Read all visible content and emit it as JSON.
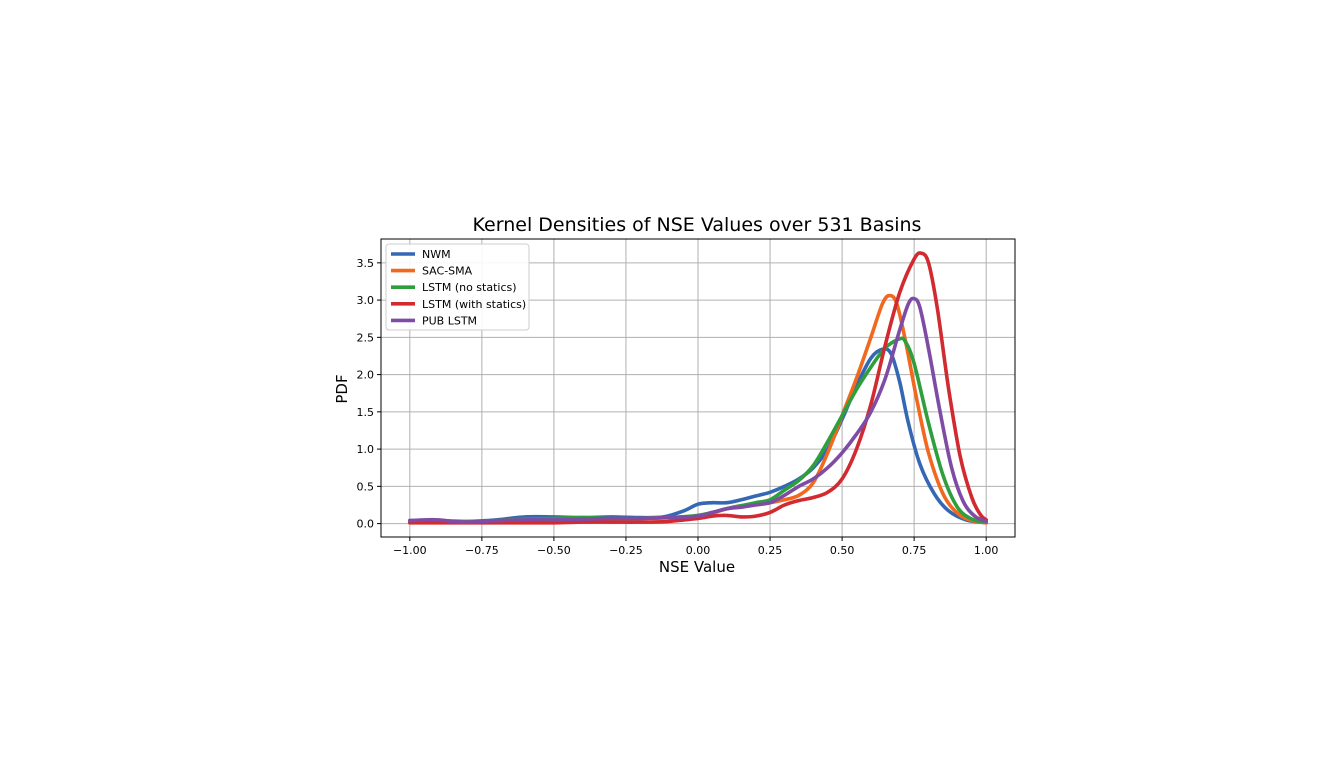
{
  "chart_data": {
    "type": "line",
    "title": "Kernel Densities of NSE Values over 531 Basins",
    "xlabel": "NSE Value",
    "ylabel": "PDF",
    "xlim": [
      -1.1,
      1.1
    ],
    "ylim": [
      -0.18,
      3.82
    ],
    "xticks": [
      -1.0,
      -0.75,
      -0.5,
      -0.25,
      0.0,
      0.25,
      0.5,
      0.75,
      1.0
    ],
    "xtick_labels": [
      "−1.00",
      "−0.75",
      "−0.50",
      "−0.25",
      "0.00",
      "0.25",
      "0.50",
      "0.75",
      "1.00"
    ],
    "yticks": [
      0.0,
      0.5,
      1.0,
      1.5,
      2.0,
      2.5,
      3.0,
      3.5
    ],
    "ytick_labels": [
      "0.0",
      "0.5",
      "1.0",
      "1.5",
      "2.0",
      "2.5",
      "3.0",
      "3.5"
    ],
    "grid": true,
    "legend_position": "top-left",
    "series": [
      {
        "name": "NWM",
        "color": "#3467b4",
        "points": [
          [
            -1.0,
            0.04
          ],
          [
            -0.9,
            0.04
          ],
          [
            -0.8,
            0.03
          ],
          [
            -0.7,
            0.05
          ],
          [
            -0.6,
            0.09
          ],
          [
            -0.5,
            0.09
          ],
          [
            -0.4,
            0.08
          ],
          [
            -0.3,
            0.09
          ],
          [
            -0.2,
            0.08
          ],
          [
            -0.12,
            0.09
          ],
          [
            -0.05,
            0.17
          ],
          [
            0.0,
            0.26
          ],
          [
            0.05,
            0.28
          ],
          [
            0.1,
            0.28
          ],
          [
            0.15,
            0.32
          ],
          [
            0.2,
            0.37
          ],
          [
            0.25,
            0.42
          ],
          [
            0.3,
            0.5
          ],
          [
            0.35,
            0.6
          ],
          [
            0.4,
            0.75
          ],
          [
            0.45,
            1.0
          ],
          [
            0.5,
            1.4
          ],
          [
            0.55,
            1.85
          ],
          [
            0.6,
            2.22
          ],
          [
            0.64,
            2.34
          ],
          [
            0.67,
            2.28
          ],
          [
            0.7,
            1.9
          ],
          [
            0.73,
            1.35
          ],
          [
            0.77,
            0.8
          ],
          [
            0.82,
            0.4
          ],
          [
            0.87,
            0.17
          ],
          [
            0.93,
            0.05
          ],
          [
            1.0,
            0.01
          ]
        ]
      },
      {
        "name": "SAC-SMA",
        "color": "#f0691f",
        "points": [
          [
            -1.0,
            0.02
          ],
          [
            -0.9,
            0.02
          ],
          [
            -0.8,
            0.02
          ],
          [
            -0.7,
            0.03
          ],
          [
            -0.6,
            0.05
          ],
          [
            -0.5,
            0.06
          ],
          [
            -0.4,
            0.06
          ],
          [
            -0.3,
            0.06
          ],
          [
            -0.2,
            0.07
          ],
          [
            -0.1,
            0.08
          ],
          [
            0.0,
            0.1
          ],
          [
            0.05,
            0.14
          ],
          [
            0.1,
            0.2
          ],
          [
            0.15,
            0.24
          ],
          [
            0.2,
            0.26
          ],
          [
            0.25,
            0.28
          ],
          [
            0.3,
            0.32
          ],
          [
            0.35,
            0.38
          ],
          [
            0.4,
            0.55
          ],
          [
            0.45,
            0.95
          ],
          [
            0.5,
            1.45
          ],
          [
            0.55,
            1.95
          ],
          [
            0.6,
            2.5
          ],
          [
            0.64,
            2.95
          ],
          [
            0.665,
            3.06
          ],
          [
            0.69,
            2.95
          ],
          [
            0.72,
            2.45
          ],
          [
            0.76,
            1.65
          ],
          [
            0.8,
            0.95
          ],
          [
            0.85,
            0.4
          ],
          [
            0.9,
            0.14
          ],
          [
            0.95,
            0.04
          ],
          [
            1.0,
            0.01
          ]
        ]
      },
      {
        "name": "LSTM (no statics)",
        "color": "#2f9e3d",
        "points": [
          [
            -1.0,
            0.02
          ],
          [
            -0.9,
            0.02
          ],
          [
            -0.8,
            0.02
          ],
          [
            -0.7,
            0.04
          ],
          [
            -0.6,
            0.06
          ],
          [
            -0.5,
            0.07
          ],
          [
            -0.4,
            0.08
          ],
          [
            -0.3,
            0.07
          ],
          [
            -0.2,
            0.07
          ],
          [
            -0.1,
            0.08
          ],
          [
            0.0,
            0.11
          ],
          [
            0.05,
            0.15
          ],
          [
            0.1,
            0.2
          ],
          [
            0.15,
            0.24
          ],
          [
            0.2,
            0.28
          ],
          [
            0.25,
            0.32
          ],
          [
            0.3,
            0.45
          ],
          [
            0.35,
            0.58
          ],
          [
            0.4,
            0.78
          ],
          [
            0.45,
            1.1
          ],
          [
            0.5,
            1.45
          ],
          [
            0.55,
            1.8
          ],
          [
            0.6,
            2.1
          ],
          [
            0.65,
            2.36
          ],
          [
            0.7,
            2.48
          ],
          [
            0.72,
            2.44
          ],
          [
            0.75,
            2.15
          ],
          [
            0.8,
            1.35
          ],
          [
            0.85,
            0.65
          ],
          [
            0.9,
            0.22
          ],
          [
            0.95,
            0.06
          ],
          [
            1.0,
            0.02
          ]
        ]
      },
      {
        "name": "LSTM (with statics)",
        "color": "#d12a31",
        "points": [
          [
            -1.0,
            0.01
          ],
          [
            -0.9,
            0.01
          ],
          [
            -0.8,
            0.01
          ],
          [
            -0.7,
            0.01
          ],
          [
            -0.6,
            0.01
          ],
          [
            -0.5,
            0.01
          ],
          [
            -0.4,
            0.02
          ],
          [
            -0.3,
            0.02
          ],
          [
            -0.2,
            0.02
          ],
          [
            -0.1,
            0.03
          ],
          [
            0.0,
            0.07
          ],
          [
            0.05,
            0.1
          ],
          [
            0.1,
            0.11
          ],
          [
            0.15,
            0.09
          ],
          [
            0.2,
            0.1
          ],
          [
            0.25,
            0.15
          ],
          [
            0.3,
            0.25
          ],
          [
            0.35,
            0.31
          ],
          [
            0.4,
            0.35
          ],
          [
            0.45,
            0.42
          ],
          [
            0.5,
            0.6
          ],
          [
            0.55,
            1.0
          ],
          [
            0.6,
            1.6
          ],
          [
            0.65,
            2.4
          ],
          [
            0.7,
            3.1
          ],
          [
            0.75,
            3.55
          ],
          [
            0.775,
            3.63
          ],
          [
            0.8,
            3.5
          ],
          [
            0.83,
            2.9
          ],
          [
            0.87,
            1.8
          ],
          [
            0.91,
            0.9
          ],
          [
            0.95,
            0.35
          ],
          [
            0.98,
            0.12
          ],
          [
            1.0,
            0.05
          ]
        ]
      },
      {
        "name": "PUB LSTM",
        "color": "#7f4ca5",
        "points": [
          [
            -1.0,
            0.04
          ],
          [
            -0.95,
            0.05
          ],
          [
            -0.9,
            0.05
          ],
          [
            -0.85,
            0.03
          ],
          [
            -0.8,
            0.02
          ],
          [
            -0.7,
            0.04
          ],
          [
            -0.6,
            0.05
          ],
          [
            -0.5,
            0.05
          ],
          [
            -0.4,
            0.06
          ],
          [
            -0.3,
            0.07
          ],
          [
            -0.2,
            0.07
          ],
          [
            -0.1,
            0.08
          ],
          [
            0.0,
            0.1
          ],
          [
            0.05,
            0.15
          ],
          [
            0.1,
            0.2
          ],
          [
            0.15,
            0.22
          ],
          [
            0.2,
            0.25
          ],
          [
            0.25,
            0.28
          ],
          [
            0.3,
            0.38
          ],
          [
            0.35,
            0.5
          ],
          [
            0.4,
            0.6
          ],
          [
            0.45,
            0.75
          ],
          [
            0.5,
            0.95
          ],
          [
            0.55,
            1.2
          ],
          [
            0.6,
            1.5
          ],
          [
            0.65,
            1.95
          ],
          [
            0.7,
            2.6
          ],
          [
            0.73,
            2.95
          ],
          [
            0.75,
            3.02
          ],
          [
            0.77,
            2.9
          ],
          [
            0.8,
            2.35
          ],
          [
            0.84,
            1.5
          ],
          [
            0.88,
            0.75
          ],
          [
            0.92,
            0.3
          ],
          [
            0.96,
            0.1
          ],
          [
            1.0,
            0.03
          ]
        ]
      }
    ]
  }
}
